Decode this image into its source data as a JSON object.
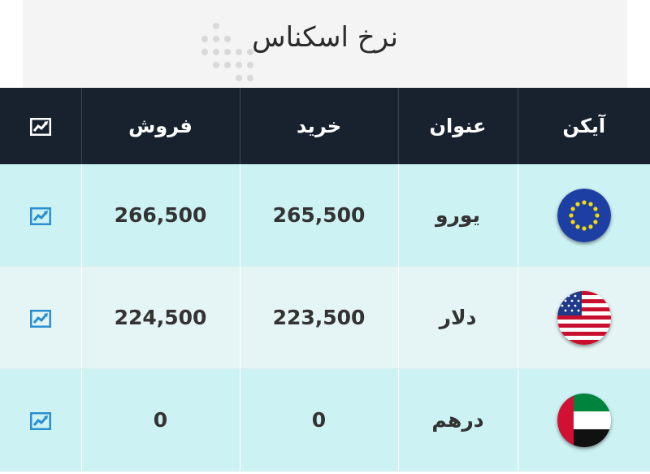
{
  "page": {
    "title": "نرخ اسکناس"
  },
  "table": {
    "headers": {
      "icon": "آیکن",
      "title": "عنوان",
      "buy": "خرید",
      "sell": "فروش",
      "chart_icon": "chart-trend-icon"
    },
    "rows": [
      {
        "flag_icon": "eu-flag-icon",
        "name": "یورو",
        "buy": "265,500",
        "sell": "266,500",
        "chart_icon": "chart-trend-icon"
      },
      {
        "flag_icon": "us-flag-icon",
        "name": "دلار",
        "buy": "223,500",
        "sell": "224,500",
        "chart_icon": "chart-trend-icon"
      },
      {
        "flag_icon": "uae-flag-icon",
        "name": "درهم",
        "buy": "0",
        "sell": "0",
        "chart_icon": "chart-trend-icon"
      }
    ]
  },
  "colors": {
    "header_bg": "#18222f",
    "row_bg_primary": "#cdf2f4",
    "row_bg_secondary": "#e5f4f5",
    "chart_icon": "#2a8fd0"
  }
}
